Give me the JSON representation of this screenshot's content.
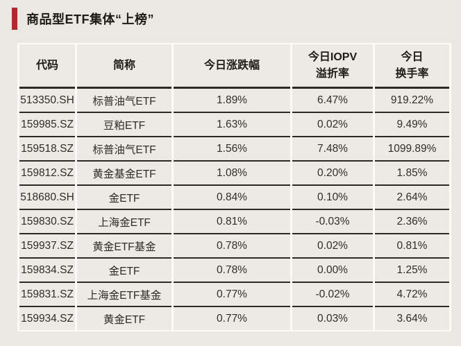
{
  "title": {
    "text": "商品型ETF集体“上榜”"
  },
  "colors": {
    "accent_red": "#b02b30",
    "page_background": "#ebe8e3",
    "cell_background": "#edeae5",
    "grid_dark_line": "#2b2926",
    "grid_light_line": "#fbfaf8"
  },
  "chart_data": {
    "type": "table",
    "title": "商品型ETF集体“上榜”",
    "columns": [
      {
        "key": "code",
        "label": "代码"
      },
      {
        "key": "name",
        "label": "简称"
      },
      {
        "key": "change",
        "label": "今日涨跌幅"
      },
      {
        "key": "iopv",
        "label": "今日IOPV\n溢折率"
      },
      {
        "key": "turnover",
        "label": "今日\n换手率"
      }
    ],
    "rows": [
      {
        "code": "513350.SH",
        "name": "标普油气ETF",
        "change": "1.89%",
        "iopv": "6.47%",
        "turnover": "919.22%"
      },
      {
        "code": "159985.SZ",
        "name": "豆粕ETF",
        "change": "1.63%",
        "iopv": "0.02%",
        "turnover": "9.49%"
      },
      {
        "code": "159518.SZ",
        "name": "标普油气ETF",
        "change": "1.56%",
        "iopv": "7.48%",
        "turnover": "1099.89%"
      },
      {
        "code": "159812.SZ",
        "name": "黄金基金ETF",
        "change": "1.08%",
        "iopv": "0.20%",
        "turnover": "1.85%"
      },
      {
        "code": "518680.SH",
        "name": "金ETF",
        "change": "0.84%",
        "iopv": "0.10%",
        "turnover": "2.64%"
      },
      {
        "code": "159830.SZ",
        "name": "上海金ETF",
        "change": "0.81%",
        "iopv": "-0.03%",
        "turnover": "2.36%"
      },
      {
        "code": "159937.SZ",
        "name": "黄金ETF基金",
        "change": "0.78%",
        "iopv": "0.02%",
        "turnover": "0.81%"
      },
      {
        "code": "159834.SZ",
        "name": "金ETF",
        "change": "0.78%",
        "iopv": "0.00%",
        "turnover": "1.25%"
      },
      {
        "code": "159831.SZ",
        "name": "上海金ETF基金",
        "change": "0.77%",
        "iopv": "-0.02%",
        "turnover": "4.72%"
      },
      {
        "code": "159934.SZ",
        "name": "黄金ETF",
        "change": "0.77%",
        "iopv": "0.03%",
        "turnover": "3.64%"
      }
    ]
  }
}
